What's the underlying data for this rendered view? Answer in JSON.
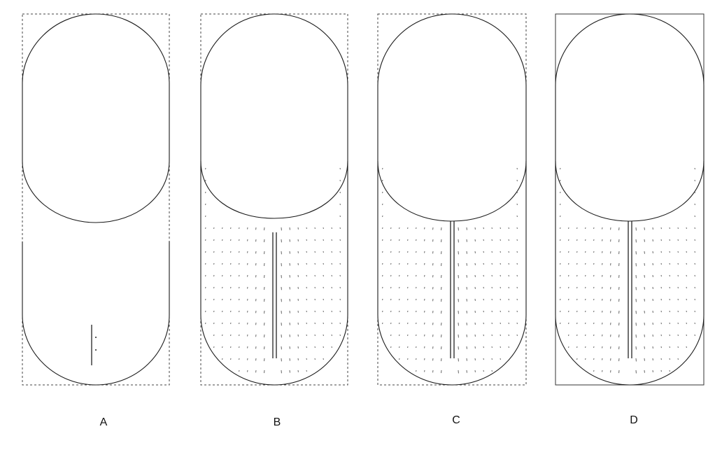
{
  "figure": {
    "panels": [
      {
        "id": "A",
        "label": "A",
        "has_flow_field": false
      },
      {
        "id": "B",
        "label": "B",
        "has_flow_field": true
      },
      {
        "id": "C",
        "label": "C",
        "has_flow_field": true
      },
      {
        "id": "D",
        "label": "D",
        "has_flow_field": true
      }
    ],
    "colors": {
      "outline": "#1a1a1a",
      "vectors": "#555555",
      "background": "#ffffff"
    }
  }
}
